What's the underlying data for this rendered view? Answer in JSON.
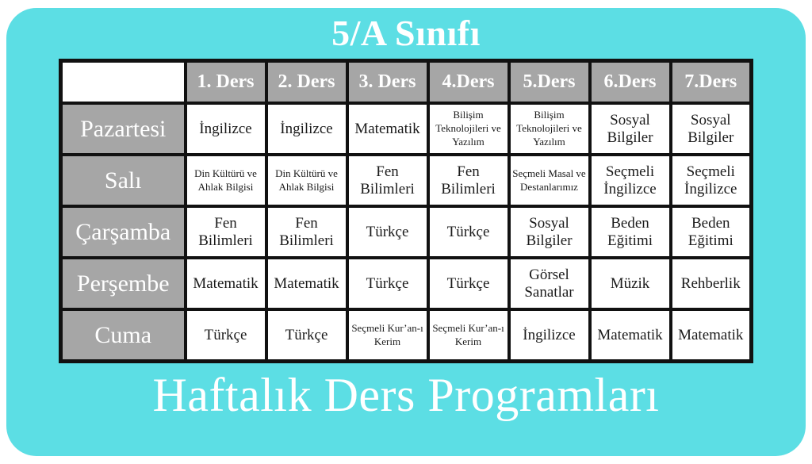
{
  "page": {
    "top_title": "5/A Sınıfı",
    "bottom_title": "Haftalık Ders Programları"
  },
  "colors": {
    "background": "#5CDEE4",
    "header_gray": "#A6A6A6",
    "border": "#111111",
    "cell_bg": "#FFFFFF",
    "cell_text": "#1B1B1B",
    "title_text": "#FFFFFF"
  },
  "schedule": {
    "corner_label": "",
    "columns": [
      "1. Ders",
      "2. Ders",
      "3. Ders",
      "4.Ders",
      "5.Ders",
      "6.Ders",
      "7.Ders"
    ],
    "rows": [
      {
        "day": "Pazartesi",
        "lessons": [
          "İngilizce",
          "İngilizce",
          "Matematik",
          "Bilişim Teknolojileri ve Yazılım",
          "Bilişim Teknolojileri ve Yazılım",
          "Sosyal Bilgiler",
          "Sosyal Bilgiler"
        ]
      },
      {
        "day": "Salı",
        "lessons": [
          "Din Kültürü ve Ahlak Bilgisi",
          "Din Kültürü ve Ahlak Bilgisi",
          "Fen Bilimleri",
          "Fen Bilimleri",
          "Seçmeli Masal ve Destanlarımız",
          "Seçmeli İngilizce",
          "Seçmeli İngilizce"
        ]
      },
      {
        "day": "Çarşamba",
        "lessons": [
          "Fen Bilimleri",
          "Fen Bilimleri",
          "Türkçe",
          "Türkçe",
          "Sosyal Bilgiler",
          "Beden Eğitimi",
          "Beden Eğitimi"
        ]
      },
      {
        "day": "Perşembe",
        "lessons": [
          "Matematik",
          "Matematik",
          "Türkçe",
          "Türkçe",
          "Görsel Sanatlar",
          "Müzik",
          "Rehberlik"
        ]
      },
      {
        "day": "Cuma",
        "lessons": [
          "Türkçe",
          "Türkçe",
          "Seçmeli Kur’an-ı Kerim",
          "Seçmeli Kur’an-ı Kerim",
          "İngilizce",
          "Matematik",
          "Matematik"
        ]
      }
    ]
  }
}
